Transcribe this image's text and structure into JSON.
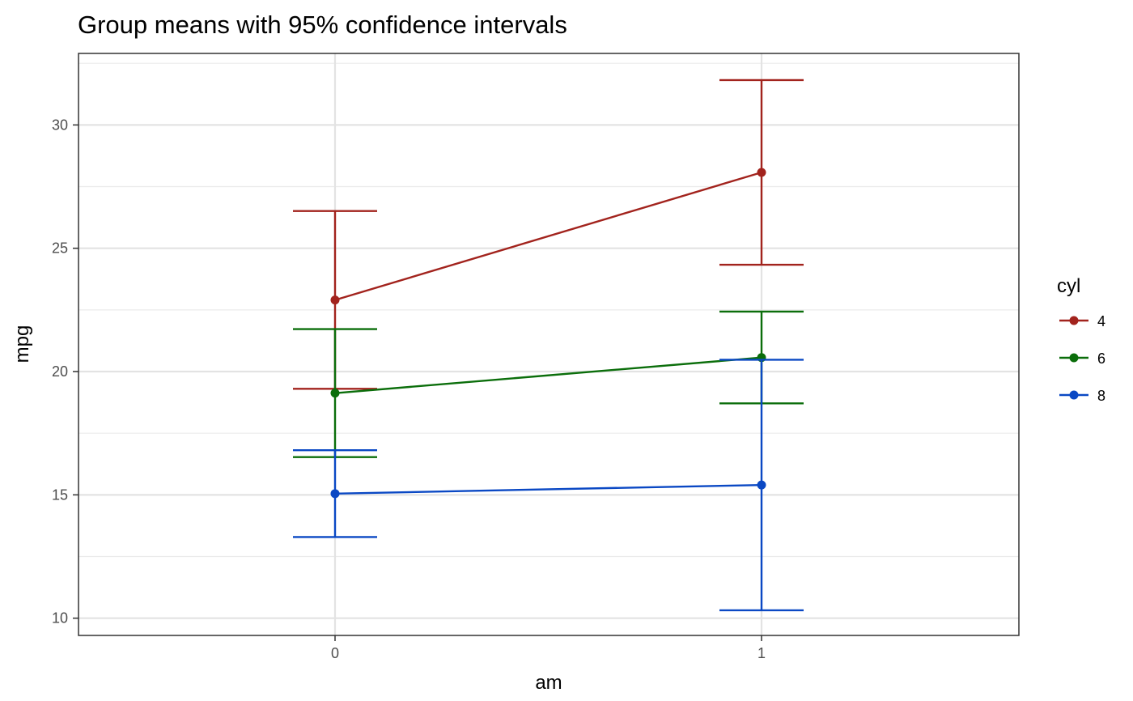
{
  "chart_data": {
    "type": "line",
    "title": "Group means with 95% confidence intervals",
    "xlabel": "am",
    "ylabel": "mpg",
    "categories": [
      "0",
      "1"
    ],
    "yticks": [
      "10",
      "15",
      "20",
      "25",
      "30"
    ],
    "ylim": [
      9.3,
      32.9
    ],
    "grid": true,
    "legend": {
      "title": "cyl",
      "position": "right"
    },
    "series": [
      {
        "name": "4",
        "color": "#a2231d",
        "mean": [
          22.9,
          28.075
        ],
        "lower": [
          19.3,
          24.33
        ],
        "upper": [
          26.51,
          31.82
        ]
      },
      {
        "name": "6",
        "color": "#0b6e0b",
        "mean": [
          19.125,
          20.567
        ],
        "lower": [
          16.53,
          18.71
        ],
        "upper": [
          21.72,
          22.43
        ]
      },
      {
        "name": "8",
        "color": "#0a48c4",
        "mean": [
          15.05,
          15.4
        ],
        "lower": [
          13.29,
          10.32
        ],
        "upper": [
          16.81,
          20.48
        ]
      }
    ]
  }
}
